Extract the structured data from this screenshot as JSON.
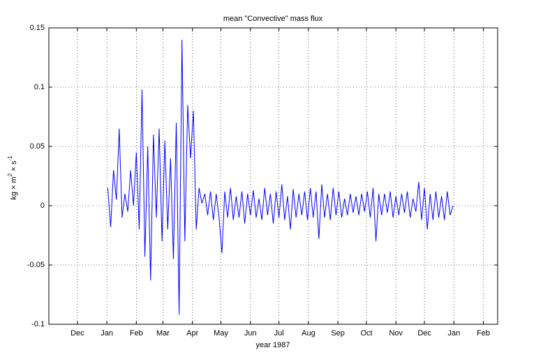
{
  "chart_data": {
    "type": "line",
    "title": "mean \"Convective\" mass flux",
    "xlabel": "year 1987",
    "ylabel": [
      "kg × m",
      "2",
      " × s",
      "-1"
    ],
    "xlim": [
      -61,
      411
    ],
    "ylim": [
      -0.1,
      0.15
    ],
    "xticks": [
      {
        "value": -31,
        "label": "Dec"
      },
      {
        "value": 0,
        "label": "Jan"
      },
      {
        "value": 31,
        "label": "Feb"
      },
      {
        "value": 59,
        "label": "Mar"
      },
      {
        "value": 90,
        "label": "Apr"
      },
      {
        "value": 120,
        "label": "May"
      },
      {
        "value": 151,
        "label": "Jun"
      },
      {
        "value": 181,
        "label": "Jul"
      },
      {
        "value": 212,
        "label": "Aug"
      },
      {
        "value": 243,
        "label": "Sep"
      },
      {
        "value": 273,
        "label": "Oct"
      },
      {
        "value": 304,
        "label": "Nov"
      },
      {
        "value": 334,
        "label": "Dec"
      },
      {
        "value": 365,
        "label": "Jan"
      },
      {
        "value": 396,
        "label": "Feb"
      }
    ],
    "yticks": [
      -0.1,
      -0.05,
      0,
      0.05,
      0.1,
      0.15
    ],
    "grid": true,
    "x": [
      1,
      4,
      7,
      10,
      13,
      16,
      19,
      22,
      25,
      28,
      31,
      34,
      37,
      40,
      43,
      46,
      49,
      52,
      55,
      58,
      61,
      64,
      67,
      70,
      73,
      76,
      79,
      82,
      85,
      88,
      91,
      94,
      97,
      100,
      103,
      106,
      109,
      112,
      115,
      118,
      121,
      124,
      127,
      130,
      133,
      136,
      139,
      142,
      145,
      148,
      151,
      154,
      157,
      160,
      163,
      166,
      169,
      172,
      175,
      178,
      181,
      184,
      187,
      190,
      193,
      196,
      199,
      202,
      205,
      208,
      211,
      214,
      217,
      220,
      223,
      226,
      229,
      232,
      235,
      238,
      241,
      244,
      247,
      250,
      253,
      256,
      259,
      262,
      265,
      268,
      271,
      274,
      277,
      280,
      283,
      286,
      289,
      292,
      295,
      298,
      301,
      304,
      307,
      310,
      313,
      316,
      319,
      322,
      325,
      328,
      331,
      334,
      337,
      340,
      343,
      346,
      349,
      352,
      355,
      358,
      361,
      364
    ],
    "series": [
      {
        "color": "#0000ff",
        "values": [
          0.015,
          -0.018,
          0.03,
          0.005,
          0.065,
          -0.01,
          0.01,
          -0.005,
          0.03,
          0.0,
          0.045,
          -0.02,
          0.098,
          -0.043,
          0.05,
          -0.063,
          0.06,
          -0.01,
          0.065,
          -0.03,
          0.055,
          -0.02,
          0.04,
          -0.045,
          0.07,
          -0.092,
          0.14,
          -0.03,
          0.085,
          0.04,
          0.08,
          -0.02,
          0.015,
          0.002,
          0.01,
          -0.008,
          0.012,
          -0.012,
          0.01,
          -0.01,
          -0.04,
          0.012,
          -0.01,
          0.015,
          -0.012,
          0.008,
          -0.01,
          0.012,
          -0.015,
          0.01,
          -0.008,
          0.013,
          -0.01,
          0.006,
          -0.012,
          0.015,
          -0.008,
          0.01,
          -0.015,
          0.012,
          -0.01,
          0.018,
          -0.012,
          0.008,
          -0.02,
          0.014,
          -0.01,
          0.01,
          -0.008,
          0.012,
          -0.012,
          0.015,
          -0.01,
          0.012,
          -0.028,
          0.018,
          -0.01,
          0.01,
          -0.012,
          0.015,
          -0.008,
          0.012,
          -0.01,
          0.006,
          -0.008,
          0.01,
          -0.006,
          0.008,
          -0.008,
          0.01,
          -0.005,
          0.012,
          -0.01,
          0.015,
          -0.03,
          0.01,
          -0.008,
          0.01,
          -0.006,
          0.012,
          -0.01,
          0.008,
          -0.008,
          0.01,
          -0.006,
          0.012,
          -0.01,
          0.006,
          -0.005,
          0.02,
          -0.012,
          0.015,
          -0.02,
          0.01,
          -0.012,
          0.012,
          -0.01,
          0.008,
          -0.012,
          0.012,
          -0.008,
          0.0
        ]
      }
    ]
  }
}
